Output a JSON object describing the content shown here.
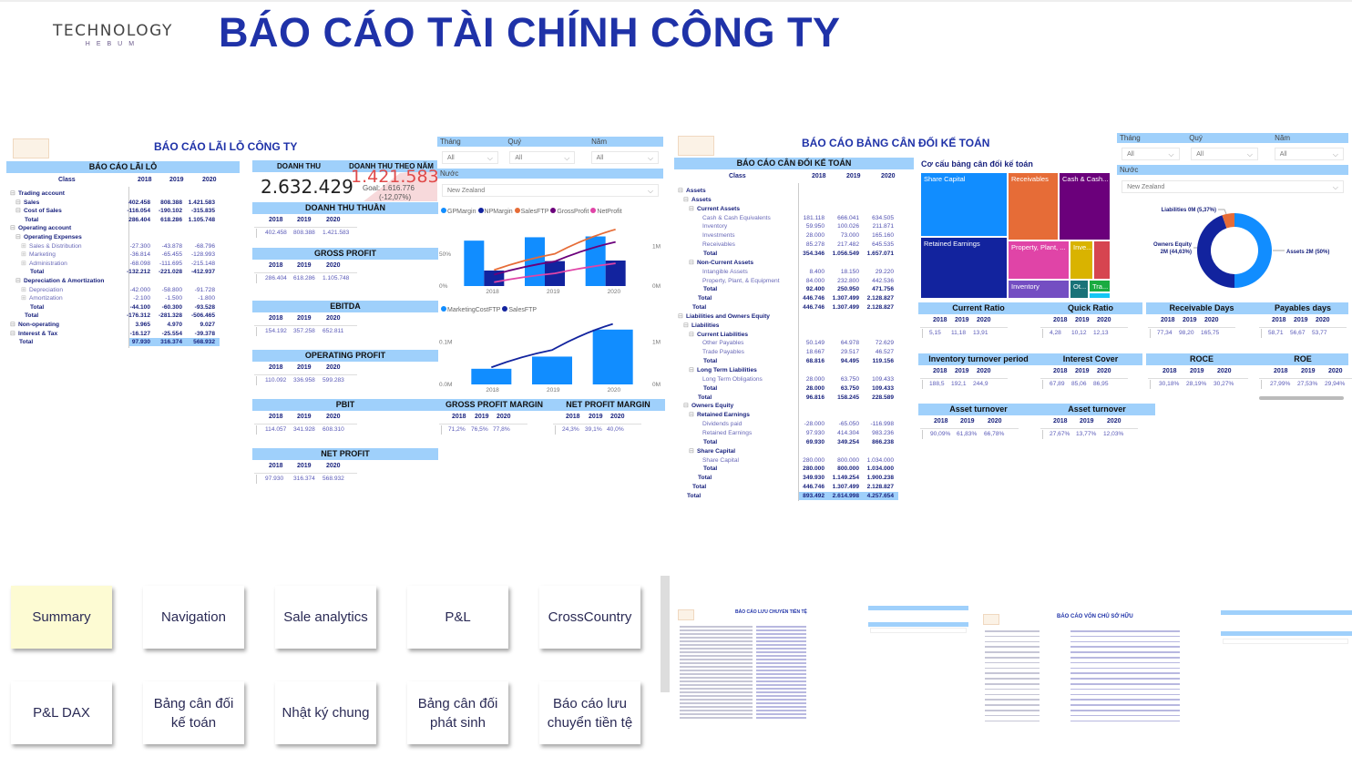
{
  "header": {
    "logo_main": "TECHNOLOGY",
    "logo_sub": "HEBUM",
    "title": "BÁO CÁO TÀI CHÍNH CÔNG TY"
  },
  "years": [
    "2018",
    "2019",
    "2020"
  ],
  "pl": {
    "section_title": "BÁO CÁO LÃI LỖ CÔNG TY",
    "table_title": "BÁO CÁO LÃI LỖ",
    "class_header": "Class",
    "rows": [
      {
        "label": "Trading account",
        "level": 0,
        "type": "group",
        "values": [
          "",
          "",
          ""
        ]
      },
      {
        "label": "Sales",
        "level": 1,
        "type": "group",
        "values": [
          "402.458",
          "808.388",
          "1.421.583"
        ]
      },
      {
        "label": "Cost of Sales",
        "level": 1,
        "type": "group",
        "values": [
          "-116.054",
          "-190.102",
          "-315.835"
        ]
      },
      {
        "label": "Total",
        "level": 1,
        "type": "total",
        "values": [
          "286.404",
          "618.286",
          "1.105.748"
        ]
      },
      {
        "label": "Operating account",
        "level": 0,
        "type": "group",
        "values": [
          "",
          "",
          ""
        ]
      },
      {
        "label": "Operating Expenses",
        "level": 1,
        "type": "group",
        "values": [
          "",
          "",
          ""
        ]
      },
      {
        "label": "Sales & Distribution",
        "level": 2,
        "type": "leafx",
        "values": [
          "-27.300",
          "-43.878",
          "-68.796"
        ]
      },
      {
        "label": "Marketing",
        "level": 2,
        "type": "leafx",
        "values": [
          "-36.814",
          "-65.455",
          "-128.993"
        ]
      },
      {
        "label": "Administration",
        "level": 2,
        "type": "leafx",
        "values": [
          "-68.098",
          "-111.695",
          "-215.148"
        ]
      },
      {
        "label": "Total",
        "level": 2,
        "type": "total",
        "values": [
          "-132.212",
          "-221.028",
          "-412.937"
        ]
      },
      {
        "label": "Depreciation & Amortization",
        "level": 1,
        "type": "group",
        "values": [
          "",
          "",
          ""
        ]
      },
      {
        "label": "Depreciation",
        "level": 2,
        "type": "leafx",
        "values": [
          "-42.000",
          "-58.800",
          "-91.728"
        ]
      },
      {
        "label": "Amortization",
        "level": 2,
        "type": "leafx",
        "values": [
          "-2.100",
          "-1.500",
          "-1.800"
        ]
      },
      {
        "label": "Total",
        "level": 2,
        "type": "total",
        "values": [
          "-44.100",
          "-60.300",
          "-93.528"
        ]
      },
      {
        "label": "Total",
        "level": 1,
        "type": "total",
        "values": [
          "-176.312",
          "-281.328",
          "-506.465"
        ]
      },
      {
        "label": "Non-operating",
        "level": 0,
        "type": "group",
        "values": [
          "3.965",
          "4.970",
          "9.027"
        ]
      },
      {
        "label": "Interest & Tax",
        "level": 0,
        "type": "group",
        "values": [
          "-16.127",
          "-25.554",
          "-39.378"
        ]
      },
      {
        "label": "Total",
        "level": 0,
        "type": "grand",
        "values": [
          "97.930",
          "316.374",
          "568.932"
        ]
      }
    ]
  },
  "revenue_card": {
    "title": "DOANH THU",
    "value": "2.632.429"
  },
  "gauge": {
    "title": "DOANH THU THEO NĂM",
    "value": "1.421.583",
    "goal": "Goal: 1.616.776",
    "diff": "(-12,07%)",
    "value_color": "#e04a4a"
  },
  "metric_cards": [
    {
      "id": "net-revenue",
      "title": "DOANH THU THUẦN",
      "values": [
        "402.458",
        "808.388",
        "1.421.583"
      ]
    },
    {
      "id": "gross-profit",
      "title": "GROSS PROFIT",
      "values": [
        "286.404",
        "618.286",
        "1.105.748"
      ]
    },
    {
      "id": "ebitda",
      "title": "EBITDA",
      "values": [
        "154.192",
        "357.258",
        "652.811"
      ]
    },
    {
      "id": "operating-profit",
      "title": "OPERATING PROFIT",
      "values": [
        "110.092",
        "336.958",
        "599.283"
      ]
    },
    {
      "id": "pbit",
      "title": "PBIT",
      "values": [
        "114.057",
        "341.928",
        "608.310"
      ]
    },
    {
      "id": "net-profit",
      "title": "NET PROFIT",
      "values": [
        "97.930",
        "316.374",
        "568.932"
      ]
    },
    {
      "id": "gross-profit-margin",
      "title": "GROSS PROFIT MARGIN",
      "values": [
        "71,2%",
        "76,5%",
        "77,8%"
      ]
    },
    {
      "id": "net-profit-margin",
      "title": "NET PROFIT MARGIN",
      "values": [
        "24,3%",
        "39,1%",
        "40,0%"
      ]
    }
  ],
  "slicers": {
    "month_label": "Tháng",
    "quarter_label": "Quý",
    "year_label": "Năm",
    "month_value": "All",
    "quarter_value": "All",
    "year_value": "All",
    "country_label": "Nước",
    "country_value": "New Zealand"
  },
  "chart_data": [
    {
      "type": "bar",
      "categories": [
        "2018",
        "2019",
        "2020"
      ],
      "series": [
        {
          "name": "GPMargin",
          "kind": "bar",
          "axis": "left",
          "color": "#118dff",
          "values": [
            71.2,
            76.5,
            77.8
          ]
        },
        {
          "name": "NPMargin",
          "kind": "bar",
          "axis": "left",
          "color": "#12239e",
          "values": [
            24.3,
            39.1,
            40.0
          ]
        },
        {
          "name": "SalesFTP",
          "kind": "line",
          "axis": "right",
          "color": "#e66c37",
          "values": [
            402458,
            808388,
            1421583
          ]
        },
        {
          "name": "GrossProfit",
          "kind": "line",
          "axis": "right",
          "color": "#6b007b",
          "values": [
            286404,
            618286,
            1105748
          ]
        },
        {
          "name": "NetProfit",
          "kind": "line",
          "axis": "right",
          "color": "#e044a7",
          "values": [
            97930,
            316374,
            568932
          ]
        }
      ],
      "left_ticks": [
        "0%",
        "50%"
      ],
      "right_ticks": [
        "0M",
        "1M"
      ],
      "ylim_left": [
        0,
        100
      ],
      "ylim_right": [
        0,
        1600000
      ],
      "legend": "top-left"
    },
    {
      "type": "bar",
      "categories": [
        "2018",
        "2019",
        "2020"
      ],
      "series": [
        {
          "name": "MarketingCostFTP",
          "kind": "bar",
          "axis": "left",
          "color": "#118dff",
          "values": [
            36814,
            65455,
            128993
          ]
        },
        {
          "name": "SalesFTP",
          "kind": "line",
          "axis": "right",
          "color": "#12239e",
          "values": [
            402458,
            808388,
            1421583
          ]
        }
      ],
      "left_ticks": [
        "0.0M",
        "0.1M"
      ],
      "right_ticks": [
        "0M",
        "1M"
      ],
      "ylim_left": [
        0,
        150000
      ],
      "ylim_right": [
        0,
        1500000
      ],
      "legend": "top-left"
    },
    {
      "type": "pie",
      "title": "",
      "slices": [
        {
          "name": "Assets",
          "label": "Assets 2M (50%)",
          "value": 50,
          "color": "#118dff"
        },
        {
          "name": "Owners Equity",
          "label": "Owners Equity 2M (44,63%)",
          "value": 44.63,
          "color": "#12239e"
        },
        {
          "name": "Liabilities",
          "label": "Liabilities 0M (5,37%)",
          "value": 5.37,
          "color": "#e66c37"
        }
      ]
    }
  ],
  "bs": {
    "section_title": "BÁO CÁO BẢNG CÂN ĐỐI KẾ TOÁN",
    "table_title": "BÁO CÁO CÂN ĐỐI KẾ TOÁN",
    "class_header": "Class",
    "rows": [
      {
        "label": "Assets",
        "level": 0,
        "type": "group",
        "values": [
          "",
          "",
          ""
        ]
      },
      {
        "label": "Assets",
        "level": 1,
        "type": "group",
        "values": [
          "",
          "",
          ""
        ]
      },
      {
        "label": "Current Assets",
        "level": 2,
        "type": "group",
        "values": [
          "",
          "",
          ""
        ]
      },
      {
        "label": "Cash & Cash Equivalents",
        "level": 3,
        "type": "leaf",
        "values": [
          "181.118",
          "666.041",
          "634.505"
        ]
      },
      {
        "label": "Inventory",
        "level": 3,
        "type": "leaf",
        "values": [
          "59.950",
          "100.026",
          "211.871"
        ]
      },
      {
        "label": "Investments",
        "level": 3,
        "type": "leaf",
        "values": [
          "28.000",
          "73.000",
          "165.160"
        ]
      },
      {
        "label": "Receivables",
        "level": 3,
        "type": "leaf",
        "values": [
          "85.278",
          "217.482",
          "645.535"
        ]
      },
      {
        "label": "Total",
        "level": 3,
        "type": "total",
        "values": [
          "354.346",
          "1.056.549",
          "1.657.071"
        ]
      },
      {
        "label": "Non-Current Assets",
        "level": 2,
        "type": "group",
        "values": [
          "",
          "",
          ""
        ]
      },
      {
        "label": "Intangible Assets",
        "level": 3,
        "type": "leaf",
        "values": [
          "8.400",
          "18.150",
          "29.220"
        ]
      },
      {
        "label": "Property, Plant, & Equipment",
        "level": 3,
        "type": "leaf",
        "values": [
          "84.000",
          "232.800",
          "442.536"
        ]
      },
      {
        "label": "Total",
        "level": 3,
        "type": "total",
        "values": [
          "92.400",
          "250.950",
          "471.756"
        ]
      },
      {
        "label": "Total",
        "level": 2,
        "type": "total",
        "values": [
          "446.746",
          "1.307.499",
          "2.128.827"
        ]
      },
      {
        "label": "Total",
        "level": 1,
        "type": "total",
        "values": [
          "446.746",
          "1.307.499",
          "2.128.827"
        ]
      },
      {
        "label": "Liabilities and Owners Equity",
        "level": 0,
        "type": "group",
        "values": [
          "",
          "",
          ""
        ]
      },
      {
        "label": "Liabilities",
        "level": 1,
        "type": "group",
        "values": [
          "",
          "",
          ""
        ]
      },
      {
        "label": "Current Liabilities",
        "level": 2,
        "type": "group",
        "values": [
          "",
          "",
          ""
        ]
      },
      {
        "label": "Other Payables",
        "level": 3,
        "type": "leaf",
        "values": [
          "50.149",
          "64.978",
          "72.629"
        ]
      },
      {
        "label": "Trade Payables",
        "level": 3,
        "type": "leaf",
        "values": [
          "18.667",
          "29.517",
          "46.527"
        ]
      },
      {
        "label": "Total",
        "level": 3,
        "type": "total",
        "values": [
          "68.816",
          "94.495",
          "119.156"
        ]
      },
      {
        "label": "Long Term Liabilities",
        "level": 2,
        "type": "group",
        "values": [
          "",
          "",
          ""
        ]
      },
      {
        "label": "Long Term Obligations",
        "level": 3,
        "type": "leaf",
        "values": [
          "28.000",
          "63.750",
          "109.433"
        ]
      },
      {
        "label": "Total",
        "level": 3,
        "type": "total",
        "values": [
          "28.000",
          "63.750",
          "109.433"
        ]
      },
      {
        "label": "Total",
        "level": 2,
        "type": "total",
        "values": [
          "96.816",
          "158.245",
          "228.589"
        ]
      },
      {
        "label": "Owners Equity",
        "level": 1,
        "type": "group",
        "values": [
          "",
          "",
          ""
        ]
      },
      {
        "label": "Retained Earnings",
        "level": 2,
        "type": "group",
        "values": [
          "",
          "",
          ""
        ]
      },
      {
        "label": "Dividends paid",
        "level": 3,
        "type": "leaf",
        "values": [
          "-28.000",
          "-65.050",
          "-116.998"
        ]
      },
      {
        "label": "Retained Earnings",
        "level": 3,
        "type": "leaf",
        "values": [
          "97.930",
          "414.304",
          "983.236"
        ]
      },
      {
        "label": "Total",
        "level": 3,
        "type": "total",
        "values": [
          "69.930",
          "349.254",
          "866.238"
        ]
      },
      {
        "label": "Share Capital",
        "level": 2,
        "type": "group",
        "values": [
          "",
          "",
          ""
        ]
      },
      {
        "label": "Share Capital",
        "level": 3,
        "type": "leaf",
        "values": [
          "280.000",
          "800.000",
          "1.034.000"
        ]
      },
      {
        "label": "Total",
        "level": 3,
        "type": "total",
        "values": [
          "280.000",
          "800.000",
          "1.034.000"
        ]
      },
      {
        "label": "Total",
        "level": 2,
        "type": "total",
        "values": [
          "349.930",
          "1.149.254",
          "1.900.238"
        ]
      },
      {
        "label": "Total",
        "level": 1,
        "type": "total",
        "values": [
          "446.746",
          "1.307.499",
          "2.128.827"
        ]
      },
      {
        "label": "Total",
        "level": 0,
        "type": "grand",
        "values": [
          "893.492",
          "2.614.998",
          "4.257.654"
        ]
      }
    ]
  },
  "treemap": {
    "title": "Cơ cấu bảng cân đối kế toán",
    "items": [
      {
        "label": "Share Capital",
        "color": "#118dff"
      },
      {
        "label": "Receivables",
        "color": "#e66c37"
      },
      {
        "label": "Cash & Cash...",
        "color": "#6b007b"
      },
      {
        "label": "Retained Earnings",
        "color": "#12239e"
      },
      {
        "label": "Property, Plant, ...",
        "color": "#e044a7"
      },
      {
        "label": "Inve...",
        "color": "#d9b300"
      },
      {
        "label": "",
        "color": "#d64550"
      },
      {
        "label": "Inventory",
        "color": "#744ec2"
      },
      {
        "label": "Ot...",
        "color": "#197278"
      },
      {
        "label": "Tra...",
        "color": "#1aab40"
      },
      {
        "label": "",
        "color": "#15c6f4"
      }
    ]
  },
  "ratios": [
    {
      "title": "Current Ratio",
      "values": [
        "5,15",
        "11,18",
        "13,91"
      ]
    },
    {
      "title": "Quick Ratio",
      "values": [
        "4,28",
        "10,12",
        "12,13"
      ]
    },
    {
      "title": "Receivable Days",
      "values": [
        "77,34",
        "98,20",
        "165,75"
      ]
    },
    {
      "title": "Payables days",
      "values": [
        "58,71",
        "56,67",
        "53,77"
      ]
    },
    {
      "title": "Inventory turnover period",
      "values": [
        "188,5",
        "192,1",
        "244,9"
      ]
    },
    {
      "title": "Interest Cover",
      "values": [
        "67,89",
        "85,06",
        "86,95"
      ]
    },
    {
      "title": "ROCE",
      "values": [
        "30,18%",
        "28,19%",
        "30,27%"
      ]
    },
    {
      "title": "ROE",
      "values": [
        "27,99%",
        "27,53%",
        "29,94%"
      ]
    },
    {
      "title": "Asset turnover",
      "values": [
        "90,09%",
        "61,83%",
        "66,78%"
      ]
    },
    {
      "title": "Asset turnover",
      "values": [
        "27,67%",
        "13,77%",
        "12,03%"
      ]
    }
  ],
  "nav": [
    {
      "label": "Summary",
      "active": true
    },
    {
      "label": "Navigation"
    },
    {
      "label": "Sale analytics"
    },
    {
      "label": "P&L"
    },
    {
      "label": "CrossCountry"
    },
    {
      "label": "P&L DAX"
    },
    {
      "label": "Bảng cân đối kế toán"
    },
    {
      "label": "Nhật ký chung"
    },
    {
      "label": "Bảng cân đối phát sinh"
    },
    {
      "label": "Báo cáo lưu chuyển tiền tệ"
    }
  ],
  "thumbnails": [
    {
      "title": "BÁO CÁO LƯU CHUYỂN TIỀN TỆ"
    },
    {
      "title": "BÁO CÁO VỐN CHỦ SỞ HỮU"
    }
  ]
}
